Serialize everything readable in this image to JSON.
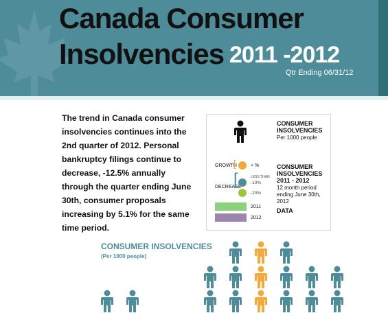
{
  "header": {
    "title_line1": "Canada Consumer",
    "title_line2": "Insolvencies",
    "years": "2011 -2012",
    "subtitle": "Qtr Ending 06/31/12"
  },
  "intro_text": "The trend in Canada consumer insolvencies continues into the 2nd quarter of 2012.  Personal bankruptcy filings continue to decrease, -12.5% annually through the quarter ending June 30th, consumer proposals increasing by 5.1% for the same time period.",
  "legend": {
    "item1_title_l1": "CONSUMER",
    "item1_title_l2": "INSOLVENCIES",
    "item1_sub": "Per 1000 people",
    "growth_label": "GROWTH",
    "growth_value": "+  %",
    "decrease_label": "DECREASE",
    "less_than": "LESS THAN",
    "dec_10": "-10%",
    "dec_20": "-20%",
    "item2_title_l1": "CONSUMER",
    "item2_title_l2": "INSOLVENCIES",
    "item2_title_l3": "2011  - 2012",
    "item2_sub_l1": "12 month period",
    "item2_sub_l2": "ending June 30th, 2012",
    "bar1_label": "2011",
    "bar2_label": "2012",
    "data_label": "DATA"
  },
  "colors": {
    "header_bg": "#4e8c9a",
    "growth": "#f3a93c",
    "decrease_10": "#4e8c9a",
    "decrease_20": "#9bc53d",
    "bar_2011": "#8cd17d",
    "bar_2012": "#9b85ad"
  },
  "section": {
    "title": "CONSUMER INSOLVENCIES",
    "sub": "(Per 1000 people)"
  }
}
